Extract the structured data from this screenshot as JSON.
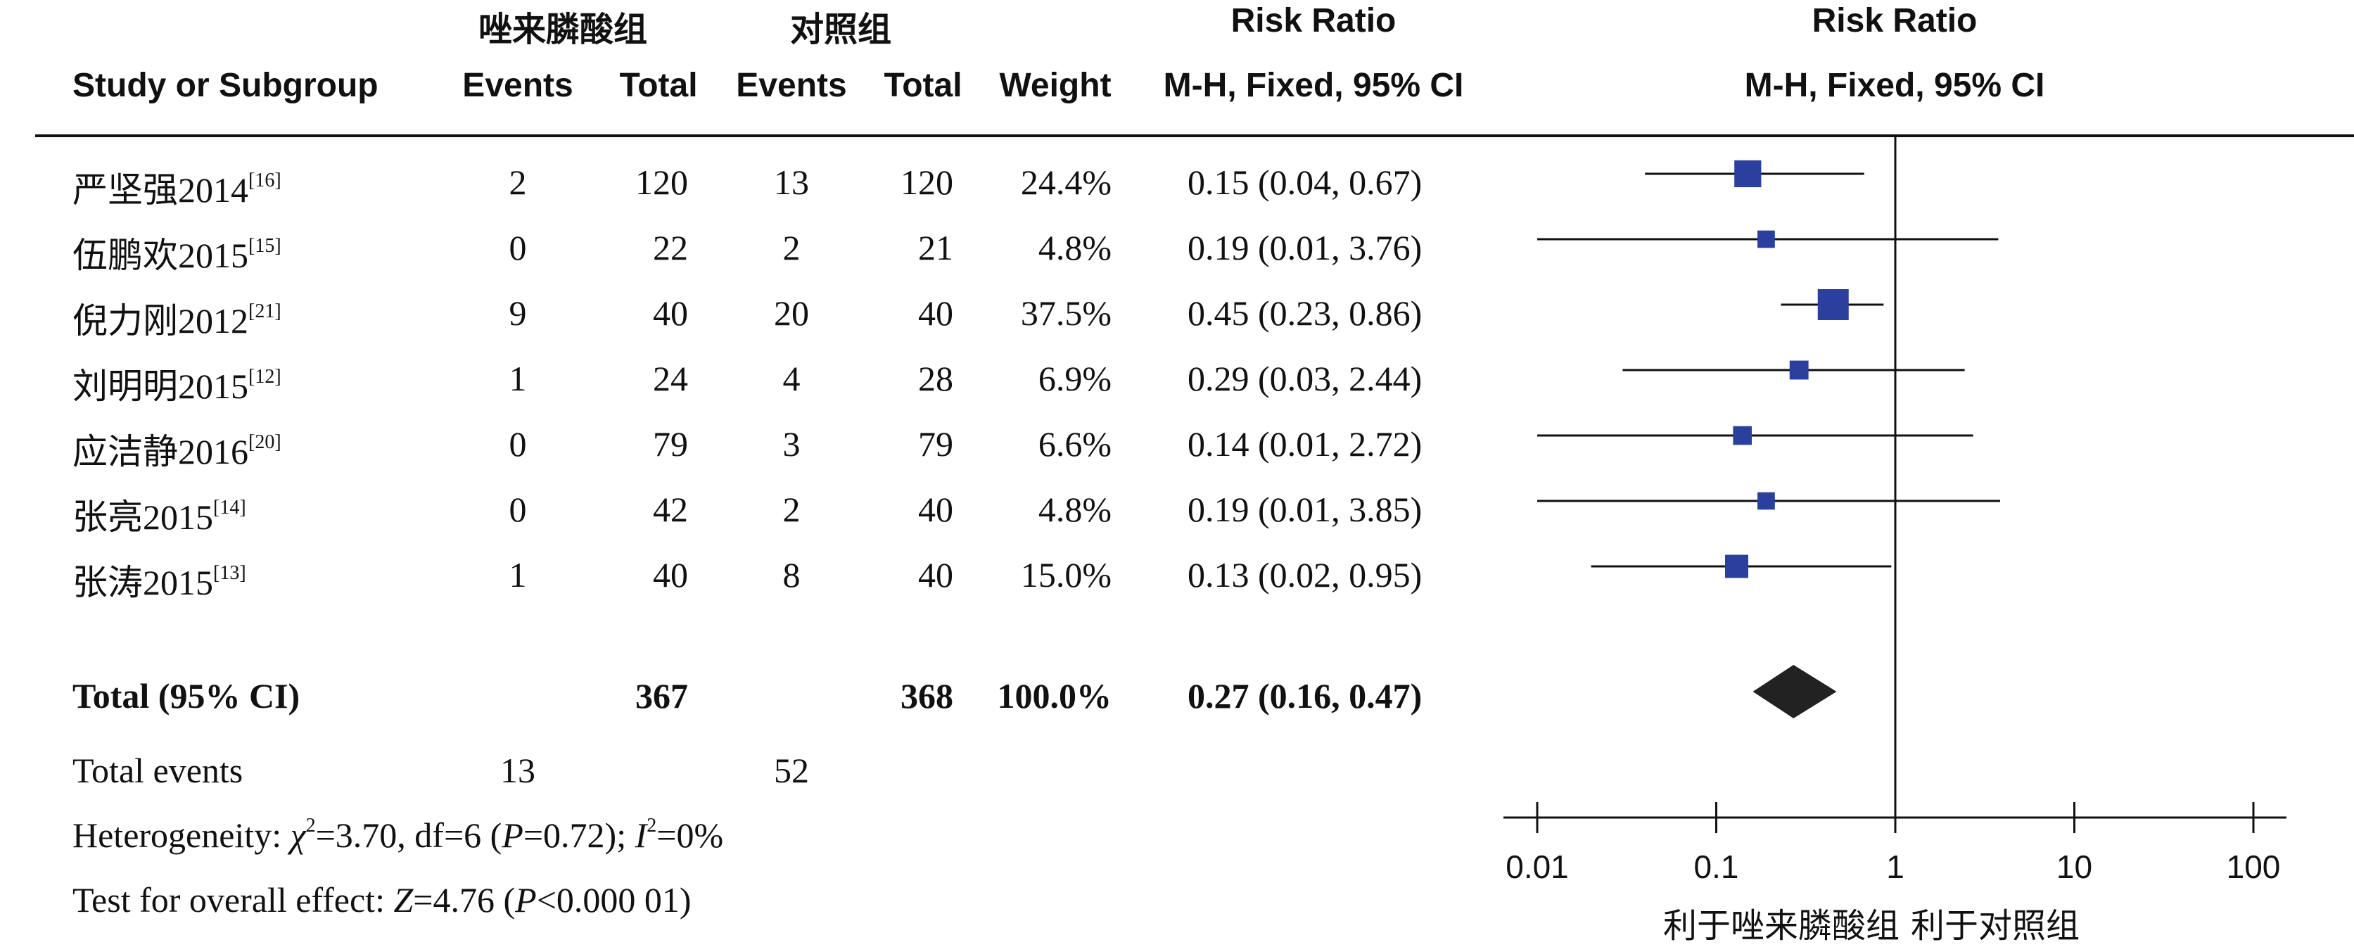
{
  "chart_data": {
    "type": "forest",
    "group_labels": {
      "experimental": "唑来膦酸组",
      "control": "对照组"
    },
    "columns": {
      "study": "Study or Subgroup",
      "exp_events": "Events",
      "exp_total": "Total",
      "ctrl_events": "Events",
      "ctrl_total": "Total",
      "weight": "Weight",
      "effect_title": "Risk Ratio",
      "effect_method": "M-H, Fixed, 95% CI",
      "plot_title": "Risk Ratio",
      "plot_method": "M-H, Fixed, 95% CI"
    },
    "studies": [
      {
        "name": "严坚强2014",
        "ref": "[16]",
        "exp_events": "2",
        "exp_total": "120",
        "ctrl_events": "13",
        "ctrl_total": "120",
        "weight_text": "24.4%",
        "weight": 24.4,
        "ci_text": "0.15 (0.04, 0.67)",
        "rr": 0.15,
        "lo": 0.04,
        "hi": 0.67
      },
      {
        "name": "伍鹏欢2015",
        "ref": "[15]",
        "exp_events": "0",
        "exp_total": "22",
        "ctrl_events": "2",
        "ctrl_total": "21",
        "weight_text": "4.8%",
        "weight": 4.8,
        "ci_text": "0.19 (0.01, 3.76)",
        "rr": 0.19,
        "lo": 0.01,
        "hi": 3.76
      },
      {
        "name": "倪力刚2012",
        "ref": "[21]",
        "exp_events": "9",
        "exp_total": "40",
        "ctrl_events": "20",
        "ctrl_total": "40",
        "weight_text": "37.5%",
        "weight": 37.5,
        "ci_text": "0.45 (0.23, 0.86)",
        "rr": 0.45,
        "lo": 0.23,
        "hi": 0.86
      },
      {
        "name": "刘明明2015",
        "ref": "[12]",
        "exp_events": "1",
        "exp_total": "24",
        "ctrl_events": "4",
        "ctrl_total": "28",
        "weight_text": "6.9%",
        "weight": 6.9,
        "ci_text": "0.29 (0.03, 2.44)",
        "rr": 0.29,
        "lo": 0.03,
        "hi": 2.44
      },
      {
        "name": "应洁静2016",
        "ref": "[20]",
        "exp_events": "0",
        "exp_total": "79",
        "ctrl_events": "3",
        "ctrl_total": "79",
        "weight_text": "6.6%",
        "weight": 6.6,
        "ci_text": "0.14 (0.01, 2.72)",
        "rr": 0.14,
        "lo": 0.01,
        "hi": 2.72
      },
      {
        "name": "张亮2015",
        "ref": "[14]",
        "exp_events": "0",
        "exp_total": "42",
        "ctrl_events": "2",
        "ctrl_total": "40",
        "weight_text": "4.8%",
        "weight": 4.8,
        "ci_text": "0.19 (0.01, 3.85)",
        "rr": 0.19,
        "lo": 0.01,
        "hi": 3.85
      },
      {
        "name": "张涛2015",
        "ref": "[13]",
        "exp_events": "1",
        "exp_total": "40",
        "ctrl_events": "8",
        "ctrl_total": "40",
        "weight_text": "15.0%",
        "weight": 15.0,
        "ci_text": "0.13 (0.02, 0.95)",
        "rr": 0.13,
        "lo": 0.02,
        "hi": 0.95
      }
    ],
    "total": {
      "label": "Total (95% CI)",
      "exp_total": "367",
      "ctrl_total": "368",
      "weight_text": "100.0%",
      "ci_text": "0.27 (0.16, 0.47)",
      "rr": 0.27,
      "lo": 0.16,
      "hi": 0.47
    },
    "total_events": {
      "label": "Total events",
      "exp": "13",
      "ctrl": "52"
    },
    "heterogeneity": {
      "prefix": "Heterogeneity: ",
      "chi_symbol": "χ",
      "chi_exp": "2",
      "chi_value": "=3.70, df=6 (",
      "p_symbol": "P",
      "p_value": "=0.72); ",
      "i_symbol": "I",
      "i_exp": "2",
      "i_value": "=0%"
    },
    "overall_effect": {
      "prefix": "Test for overall effect: ",
      "z_symbol": "Z",
      "z_value": "=4.76 (",
      "p_symbol": "P",
      "p_value": "<0.000 01)"
    },
    "axis": {
      "scale": "log",
      "ticks": [
        0.01,
        0.1,
        1,
        10,
        100
      ],
      "tick_labels": [
        "0.01",
        "0.1",
        "1",
        "10",
        "100"
      ],
      "range": [
        0.01,
        100
      ],
      "null_line": 1,
      "left_label": "利于唑来膦酸组",
      "right_label": "利于对照组"
    },
    "colors": {
      "marker": "#2b3f9e",
      "diamond": "#222222",
      "line": "#111111"
    }
  }
}
